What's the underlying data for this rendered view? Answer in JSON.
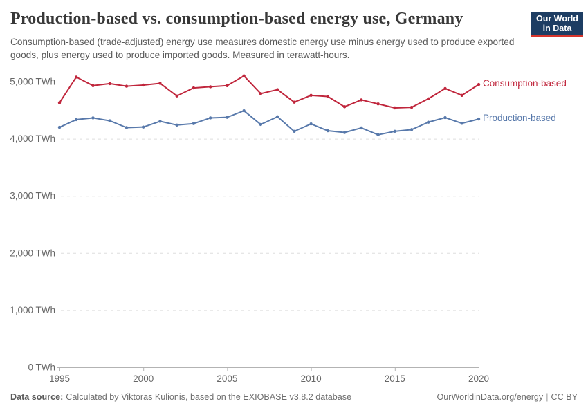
{
  "logo": {
    "line1": "Our World",
    "line2": "in Data",
    "bg_color": "#1d3d63",
    "accent_color": "#d7352c"
  },
  "chart_data": {
    "type": "line",
    "title": "Production-based vs. consumption-based energy use, Germany",
    "subtitle": "Consumption-based (trade-adjusted) energy use measures domestic energy use minus energy used to produce exported goods, plus energy used to produce imported goods. Measured in terawatt-hours.",
    "x": [
      1995,
      1996,
      1997,
      1998,
      1999,
      2000,
      2001,
      2002,
      2003,
      2004,
      2005,
      2006,
      2007,
      2008,
      2009,
      2010,
      2011,
      2012,
      2013,
      2014,
      2015,
      2016,
      2017,
      2018,
      2019,
      2020
    ],
    "series": [
      {
        "name": "Consumption-based",
        "color": "#c0263c",
        "values": [
          4630,
          5080,
          4930,
          4965,
          4920,
          4940,
          4970,
          4750,
          4890,
          4910,
          4930,
          5100,
          4790,
          4860,
          4640,
          4760,
          4740,
          4560,
          4680,
          4610,
          4540,
          4550,
          4700,
          4880,
          4760,
          4950
        ]
      },
      {
        "name": "Production-based",
        "color": "#5879ab",
        "values": [
          4200,
          4335,
          4365,
          4315,
          4195,
          4205,
          4305,
          4240,
          4265,
          4365,
          4375,
          4490,
          4250,
          4385,
          4130,
          4260,
          4140,
          4110,
          4190,
          4070,
          4130,
          4160,
          4290,
          4370,
          4270,
          4345
        ]
      }
    ],
    "xlabel": "",
    "ylabel": "",
    "ylim": [
      0,
      5000
    ],
    "yticks": [
      0,
      1000,
      2000,
      3000,
      4000,
      5000
    ],
    "ytick_labels": [
      "0 TWh",
      "1,000 TWh",
      "2,000 TWh",
      "3,000 TWh",
      "4,000 TWh",
      "5,000 TWh"
    ],
    "xticks": [
      1995,
      2000,
      2005,
      2010,
      2015,
      2020
    ],
    "grid": "horizontal-dashed",
    "legend_position": "line-end-labels",
    "unit": "TWh"
  },
  "footer": {
    "source_label": "Data source:",
    "source_text": "Calculated by Viktoras Kulionis, based on the EXIOBASE v3.8.2 database",
    "link_text": "OurWorldinData.org/energy",
    "separator": "|",
    "license_text": "CC BY"
  }
}
